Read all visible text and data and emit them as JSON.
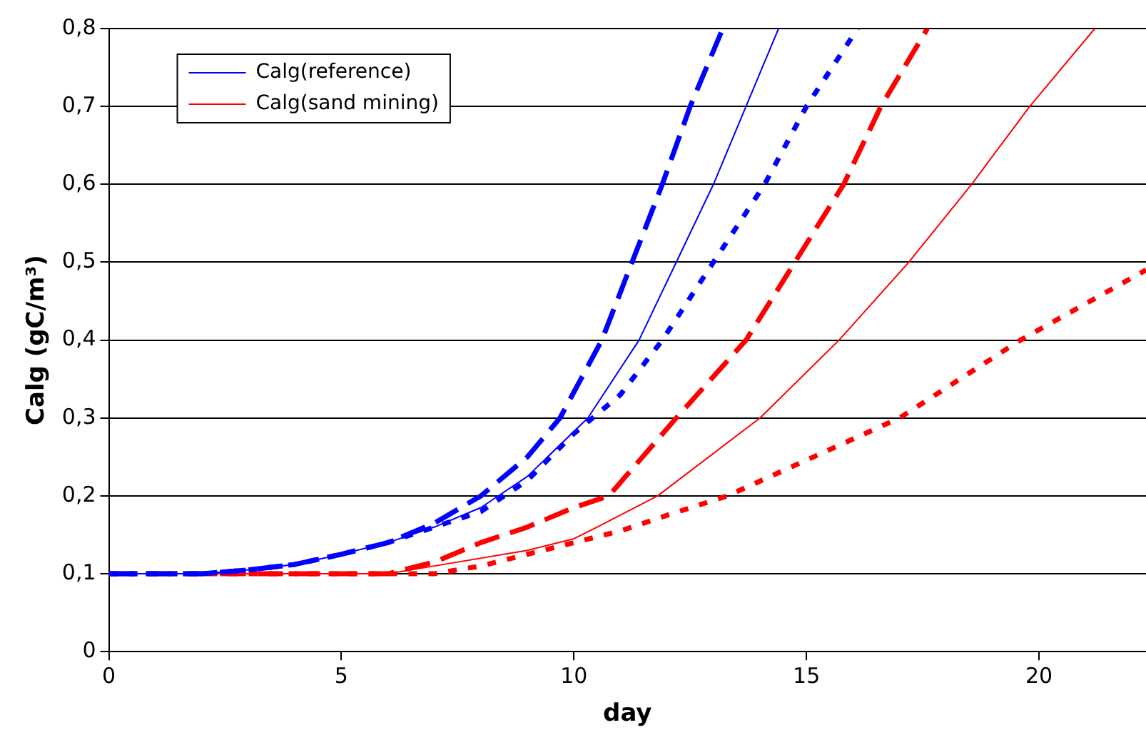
{
  "chart_data": {
    "type": "line",
    "xlabel": "day",
    "ylabel": "Calg (gC/m³)",
    "xlim": [
      0,
      22.3
    ],
    "xticks": [
      0,
      5,
      10,
      15,
      20
    ],
    "ylim": [
      0,
      0.8
    ],
    "yticks": [
      0,
      {
        "value": 0.1,
        "label": "0,1"
      },
      {
        "value": 0.2,
        "label": "0,2"
      },
      {
        "value": 0.3,
        "label": "0,3"
      },
      {
        "value": 0.4,
        "label": "0,4"
      },
      {
        "value": 0.5,
        "label": "0,5"
      },
      {
        "value": 0.6,
        "label": "0,6"
      },
      {
        "value": 0.7,
        "label": "0,7"
      },
      {
        "value": 0.8,
        "label": "0,8"
      }
    ],
    "grid": "y",
    "legend": "top left",
    "marker": "none",
    "series": [
      {
        "color": "#0000ff",
        "line_style": "dashed",
        "x": [
          0,
          2,
          3,
          4,
          5,
          6,
          7,
          8,
          9,
          9.7,
          10.6,
          11.25,
          11.9,
          12.5,
          13.2
        ],
        "values": [
          0.1,
          0.1,
          0.105,
          0.112,
          0.125,
          0.14,
          0.165,
          0.2,
          0.25,
          0.3,
          0.4,
          0.5,
          0.6,
          0.7,
          0.8
        ]
      },
      {
        "name": "Calg(reference)",
        "color": "#0000ff",
        "line_style": "solid",
        "x": [
          0,
          2,
          3,
          4,
          5,
          6,
          7,
          8,
          9,
          10.3,
          11.4,
          12.2,
          13,
          13.7,
          14.4
        ],
        "values": [
          0.1,
          0.1,
          0.105,
          0.112,
          0.125,
          0.14,
          0.16,
          0.185,
          0.225,
          0.3,
          0.4,
          0.5,
          0.6,
          0.7,
          0.8
        ]
      },
      {
        "color": "#0000ff",
        "line_style": "dotted",
        "x": [
          0,
          2,
          3,
          4,
          5,
          6,
          7,
          8,
          9,
          10,
          11,
          11.9,
          13,
          14.1,
          15,
          16.1
        ],
        "values": [
          0.1,
          0.1,
          0.105,
          0.112,
          0.125,
          0.14,
          0.16,
          0.18,
          0.22,
          0.28,
          0.33,
          0.4,
          0.5,
          0.6,
          0.7,
          0.8
        ]
      },
      {
        "color": "#ff0000",
        "line_style": "dashed",
        "x": [
          0,
          6,
          7,
          8,
          9,
          10,
          10.75,
          12.2,
          13.7,
          14.75,
          15.8,
          16.6,
          17.6
        ],
        "values": [
          0.1,
          0.1,
          0.115,
          0.14,
          0.16,
          0.185,
          0.2,
          0.3,
          0.4,
          0.5,
          0.6,
          0.7,
          0.8
        ]
      },
      {
        "name": "Calg(sand mining)",
        "color": "#ff0000",
        "line_style": "solid",
        "x": [
          0,
          6,
          7,
          9,
          10,
          10.5,
          11.8,
          14,
          15.7,
          17.2,
          18.55,
          19.8,
          21.2
        ],
        "values": [
          0.1,
          0.1,
          0.11,
          0.13,
          0.145,
          0.16,
          0.2,
          0.3,
          0.4,
          0.5,
          0.6,
          0.7,
          0.8
        ]
      },
      {
        "color": "#ff0000",
        "line_style": "dotted",
        "x": [
          0,
          7,
          8,
          9,
          10,
          11,
          12,
          13.3,
          17,
          19.6,
          22.3
        ],
        "values": [
          0.1,
          0.1,
          0.11,
          0.125,
          0.14,
          0.155,
          0.175,
          0.2,
          0.3,
          0.4,
          0.49
        ]
      }
    ]
  }
}
